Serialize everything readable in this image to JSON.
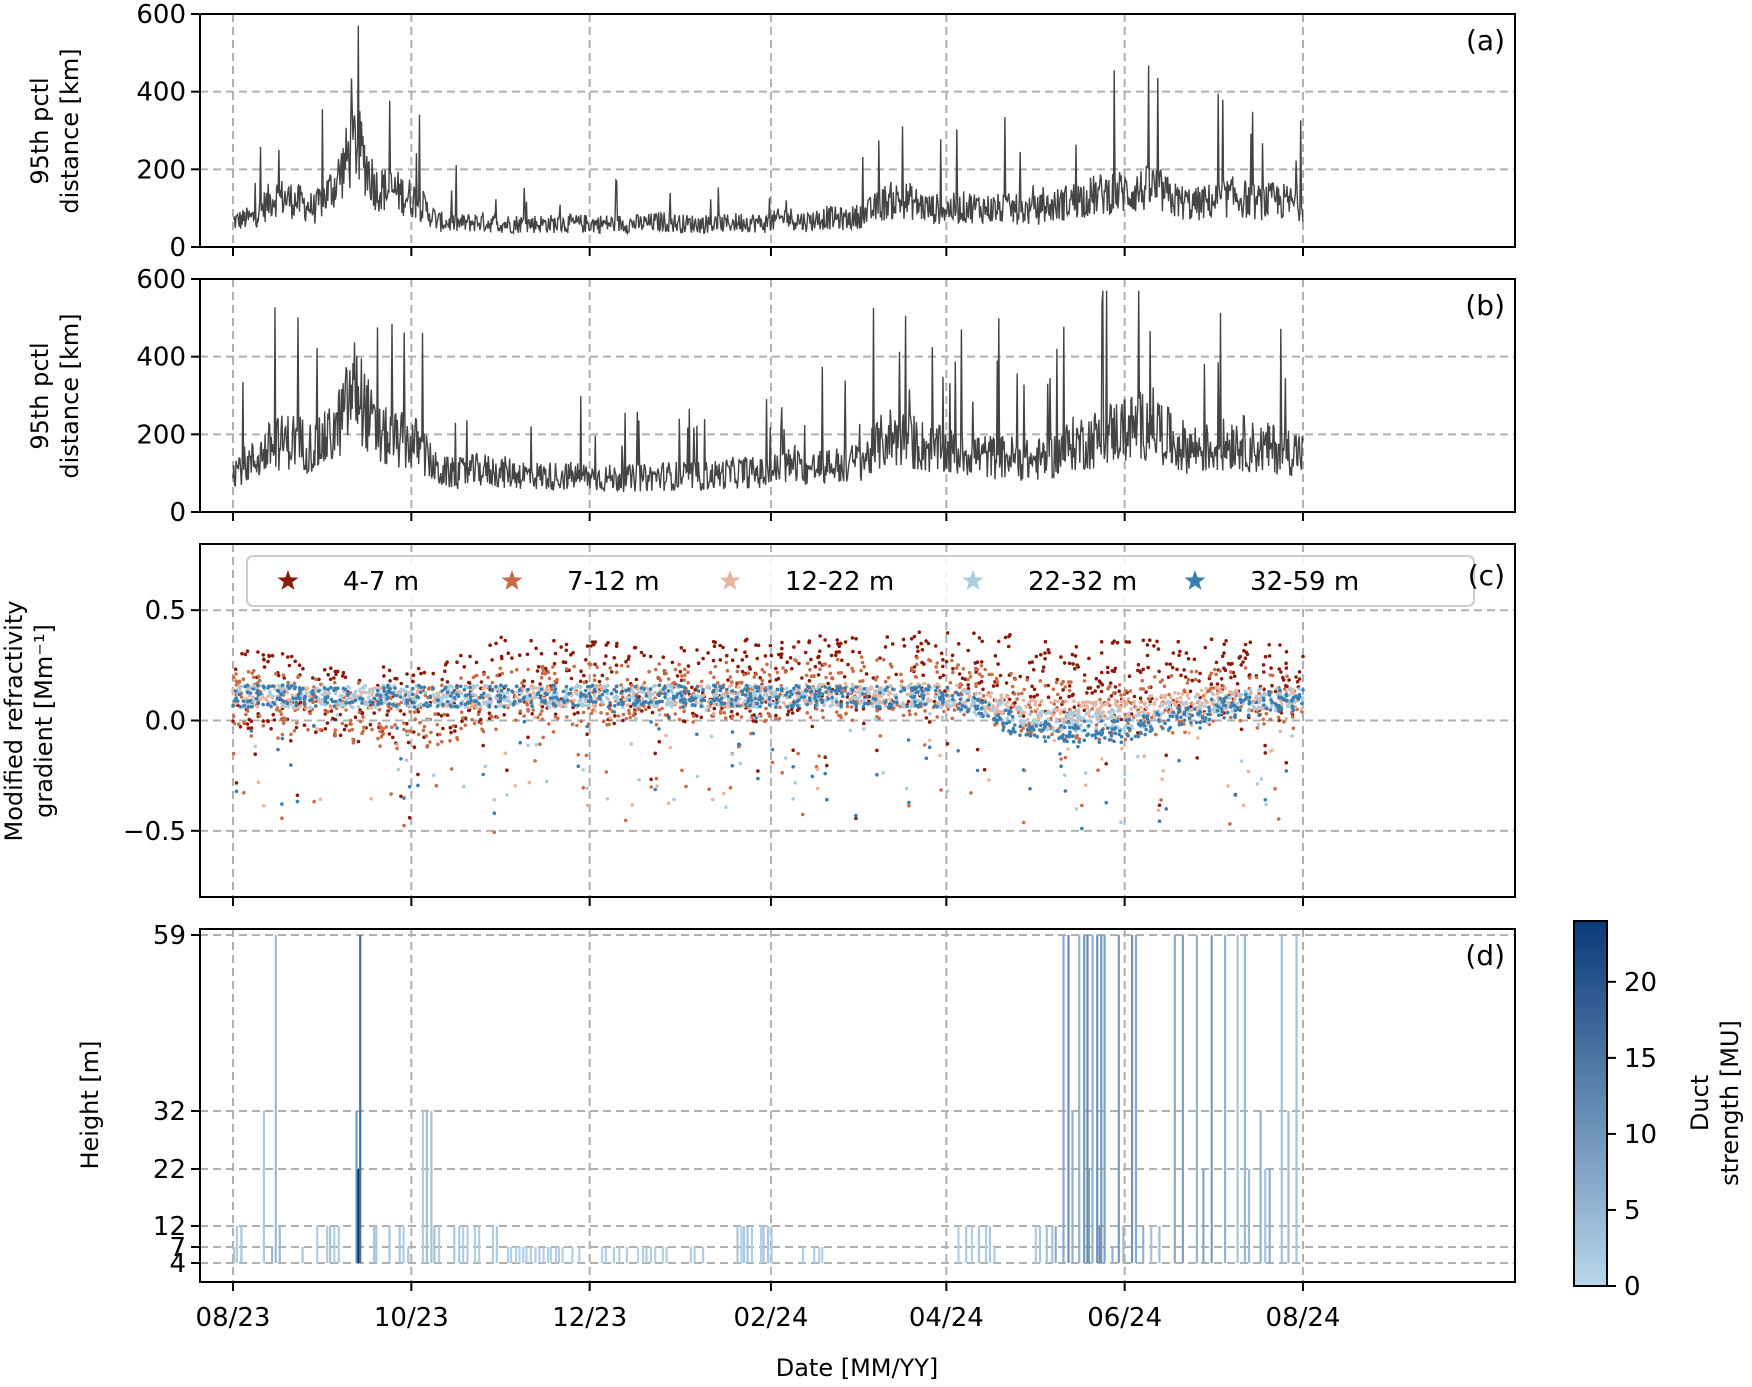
{
  "chart_data": [
    {
      "panel_label": "(a)",
      "type": "line",
      "ylabel_lines": [
        "95th pctl",
        "distance [km]"
      ],
      "ylim": [
        0,
        600
      ],
      "yticks": [
        0,
        200,
        400,
        600
      ],
      "xlim": [
        "2023-08-01",
        "2024-08-01"
      ],
      "grid": true,
      "series": [
        {
          "color": "#444444",
          "x": [
            "2023-08-01",
            "2023-08-08",
            "2023-08-15",
            "2023-08-22",
            "2023-08-29",
            "2023-09-05",
            "2023-09-12",
            "2023-09-19",
            "2023-09-26",
            "2023-10-03",
            "2023-10-10",
            "2023-10-17",
            "2023-10-24",
            "2023-10-31",
            "2023-11-07",
            "2023-11-14",
            "2023-11-21",
            "2023-11-28",
            "2023-12-05",
            "2023-12-12",
            "2023-12-19",
            "2023-12-26",
            "2024-01-02",
            "2024-01-09",
            "2024-01-16",
            "2024-01-23",
            "2024-01-30",
            "2024-02-06",
            "2024-02-13",
            "2024-02-20",
            "2024-02-27",
            "2024-03-05",
            "2024-03-12",
            "2024-03-19",
            "2024-03-26",
            "2024-04-02",
            "2024-04-09",
            "2024-04-16",
            "2024-04-23",
            "2024-04-30",
            "2024-05-07",
            "2024-05-14",
            "2024-05-21",
            "2024-05-28",
            "2024-06-04",
            "2024-06-11",
            "2024-06-18",
            "2024-06-25",
            "2024-07-02",
            "2024-07-09",
            "2024-07-16",
            "2024-07-23",
            "2024-08-01"
          ],
          "y": [
            60,
            70,
            120,
            110,
            90,
            150,
            250,
            140,
            130,
            110,
            60,
            55,
            60,
            55,
            55,
            55,
            55,
            55,
            55,
            55,
            55,
            60,
            55,
            55,
            55,
            60,
            55,
            70,
            60,
            70,
            65,
            80,
            110,
            110,
            90,
            90,
            95,
            90,
            90,
            85,
            95,
            110,
            120,
            130,
            130,
            140,
            110,
            100,
            110,
            120,
            105,
            110,
            100
          ]
        }
      ]
    },
    {
      "panel_label": "(b)",
      "type": "line",
      "ylabel_lines": [
        "95th pctl",
        "distance [km]"
      ],
      "ylim": [
        0,
        600
      ],
      "yticks": [
        0,
        200,
        400,
        600
      ],
      "xlim": [
        "2023-08-01",
        "2024-08-01"
      ],
      "grid": true,
      "series": [
        {
          "color": "#444444",
          "x": [
            "2023-08-01",
            "2023-08-08",
            "2023-08-15",
            "2023-08-22",
            "2023-08-29",
            "2023-09-05",
            "2023-09-12",
            "2023-09-19",
            "2023-09-26",
            "2023-10-03",
            "2023-10-10",
            "2023-10-17",
            "2023-10-24",
            "2023-10-31",
            "2023-11-07",
            "2023-11-14",
            "2023-11-21",
            "2023-11-28",
            "2023-12-05",
            "2023-12-12",
            "2023-12-19",
            "2023-12-26",
            "2024-01-02",
            "2024-01-09",
            "2024-01-16",
            "2024-01-23",
            "2024-01-30",
            "2024-02-06",
            "2024-02-13",
            "2024-02-20",
            "2024-02-27",
            "2024-03-05",
            "2024-03-12",
            "2024-03-19",
            "2024-03-26",
            "2024-04-02",
            "2024-04-09",
            "2024-04-16",
            "2024-04-23",
            "2024-04-30",
            "2024-05-07",
            "2024-05-14",
            "2024-05-21",
            "2024-05-28",
            "2024-06-04",
            "2024-06-11",
            "2024-06-18",
            "2024-06-25",
            "2024-07-02",
            "2024-07-09",
            "2024-07-16",
            "2024-07-23",
            "2024-08-01"
          ],
          "y": [
            100,
            120,
            160,
            170,
            150,
            190,
            300,
            180,
            170,
            160,
            95,
            90,
            100,
            95,
            90,
            85,
            85,
            85,
            80,
            80,
            80,
            85,
            85,
            85,
            90,
            95,
            90,
            110,
            100,
            110,
            110,
            130,
            180,
            170,
            150,
            140,
            140,
            130,
            130,
            120,
            130,
            160,
            170,
            190,
            200,
            210,
            160,
            150,
            150,
            170,
            150,
            150,
            140
          ]
        }
      ]
    },
    {
      "panel_label": "(c)",
      "type": "scatter",
      "ylabel_lines": [
        "Modified refractivity",
        "gradient [Mm⁻¹]"
      ],
      "ylim": [
        -0.8,
        0.8
      ],
      "yticks": [
        -0.5,
        0.0,
        0.5
      ],
      "ytick_labels": [
        "−0.5",
        "0.0",
        "0.5"
      ],
      "xlim": [
        "2023-08-01",
        "2024-08-01"
      ],
      "grid": true,
      "legend_placement": "top",
      "series": [
        {
          "name": "4-7 m",
          "color": "#8b1a0a",
          "x": [
            "2023-08-01",
            "2023-09-01",
            "2023-10-01",
            "2023-11-01",
            "2023-12-01",
            "2024-01-01",
            "2024-02-01",
            "2024-03-01",
            "2024-04-01",
            "2024-05-01",
            "2024-06-01",
            "2024-07-01",
            "2024-08-01"
          ],
          "y": [
            0.15,
            0.1,
            0.05,
            0.2,
            0.18,
            0.17,
            0.2,
            0.22,
            0.25,
            0.2,
            0.18,
            0.2,
            0.15
          ]
        },
        {
          "name": "7-12 m",
          "color": "#c86d48",
          "x": [
            "2023-08-01",
            "2023-09-01",
            "2023-10-01",
            "2023-11-01",
            "2023-12-01",
            "2024-01-01",
            "2024-02-01",
            "2024-03-01",
            "2024-04-01",
            "2024-05-01",
            "2024-06-01",
            "2024-07-01",
            "2024-08-01"
          ],
          "y": [
            0.12,
            0.05,
            0.0,
            0.1,
            0.12,
            0.12,
            0.13,
            0.15,
            0.15,
            0.05,
            0.05,
            0.1,
            0.1
          ]
        },
        {
          "name": "12-22 m",
          "color": "#e8b6a0",
          "x": [
            "2023-08-01",
            "2023-09-01",
            "2023-10-01",
            "2023-11-01",
            "2023-12-01",
            "2024-01-01",
            "2024-02-01",
            "2024-03-01",
            "2024-04-01",
            "2024-05-01",
            "2024-06-01",
            "2024-07-01",
            "2024-08-01"
          ],
          "y": [
            0.11,
            0.1,
            0.1,
            0.11,
            0.11,
            0.11,
            0.11,
            0.12,
            0.12,
            0.05,
            0.05,
            0.1,
            0.1
          ]
        },
        {
          "name": "22-32 m",
          "color": "#a8cce0",
          "x": [
            "2023-08-01",
            "2023-09-01",
            "2023-10-01",
            "2023-11-01",
            "2023-12-01",
            "2024-01-01",
            "2024-02-01",
            "2024-03-01",
            "2024-04-01",
            "2024-05-01",
            "2024-06-01",
            "2024-07-01",
            "2024-08-01"
          ],
          "y": [
            0.11,
            0.11,
            0.11,
            0.11,
            0.11,
            0.11,
            0.11,
            0.11,
            0.11,
            0.0,
            0.0,
            0.08,
            0.1
          ]
        },
        {
          "name": "32-59 m",
          "color": "#3a7fb0",
          "x": [
            "2023-08-01",
            "2023-09-01",
            "2023-10-01",
            "2023-11-01",
            "2023-12-01",
            "2024-01-01",
            "2024-02-01",
            "2024-03-01",
            "2024-04-01",
            "2024-05-01",
            "2024-06-01",
            "2024-07-01",
            "2024-08-01"
          ],
          "y": [
            0.11,
            0.11,
            0.11,
            0.11,
            0.11,
            0.11,
            0.11,
            0.11,
            0.11,
            -0.05,
            -0.05,
            0.05,
            0.1
          ]
        }
      ]
    },
    {
      "panel_label": "(d)",
      "type": "heatmap",
      "ylabel": "Height [m]",
      "yticks": [
        4,
        7,
        12,
        22,
        32,
        59
      ],
      "xlabel": "Date [MM/YY]",
      "xlim": [
        "2023-08-01",
        "2024-08-01"
      ],
      "xticks": [
        "2023-08-01",
        "2023-10-01",
        "2023-12-01",
        "2024-02-01",
        "2024-04-01",
        "2024-06-01",
        "2024-08-01"
      ],
      "xtick_labels": [
        "08/23",
        "10/23",
        "12/23",
        "02/24",
        "04/24",
        "06/24",
        "08/24"
      ],
      "grid": true,
      "colorbar": {
        "label_lines": [
          "Duct",
          "strength [MU]"
        ],
        "range": [
          0,
          24
        ],
        "ticks": [
          0,
          5,
          10,
          15,
          20
        ],
        "color_min": "#b9d6ea",
        "color_max": "#0a3a7a"
      },
      "ducts": [
        {
          "start": "2023-08-01",
          "end": "2023-08-06",
          "top": 12,
          "strength": 2
        },
        {
          "start": "2023-08-08",
          "end": "2023-08-14",
          "top": 32,
          "strength": 2
        },
        {
          "start": "2023-08-14",
          "end": "2023-08-18",
          "top": 59,
          "strength": 3
        },
        {
          "start": "2023-08-20",
          "end": "2023-09-10",
          "top": 12,
          "strength": 2
        },
        {
          "start": "2023-09-12",
          "end": "2023-09-14",
          "top": 59,
          "strength": 18
        },
        {
          "start": "2023-09-15",
          "end": "2023-10-01",
          "top": 12,
          "strength": 2
        },
        {
          "start": "2023-10-05",
          "end": "2023-10-10",
          "top": 32,
          "strength": 3
        },
        {
          "start": "2023-10-10",
          "end": "2023-10-31",
          "top": 12,
          "strength": 2
        },
        {
          "start": "2023-11-01",
          "end": "2023-11-30",
          "top": 7,
          "strength": 1
        },
        {
          "start": "2023-12-05",
          "end": "2024-01-10",
          "top": 7,
          "strength": 1
        },
        {
          "start": "2024-01-20",
          "end": "2024-02-05",
          "top": 12,
          "strength": 2
        },
        {
          "start": "2024-02-10",
          "end": "2024-02-20",
          "top": 7,
          "strength": 1
        },
        {
          "start": "2024-04-05",
          "end": "2024-04-20",
          "top": 12,
          "strength": 2
        },
        {
          "start": "2024-05-01",
          "end": "2024-05-08",
          "top": 12,
          "strength": 3
        },
        {
          "start": "2024-05-08",
          "end": "2024-06-10",
          "top": 59,
          "strength": 8
        },
        {
          "start": "2024-05-18",
          "end": "2024-05-25",
          "top": 59,
          "strength": 16
        },
        {
          "start": "2024-06-10",
          "end": "2024-06-18",
          "top": 12,
          "strength": 3
        },
        {
          "start": "2024-06-18",
          "end": "2024-07-05",
          "top": 59,
          "strength": 6
        },
        {
          "start": "2024-07-05",
          "end": "2024-07-31",
          "top": 59,
          "strength": 4
        }
      ]
    }
  ]
}
